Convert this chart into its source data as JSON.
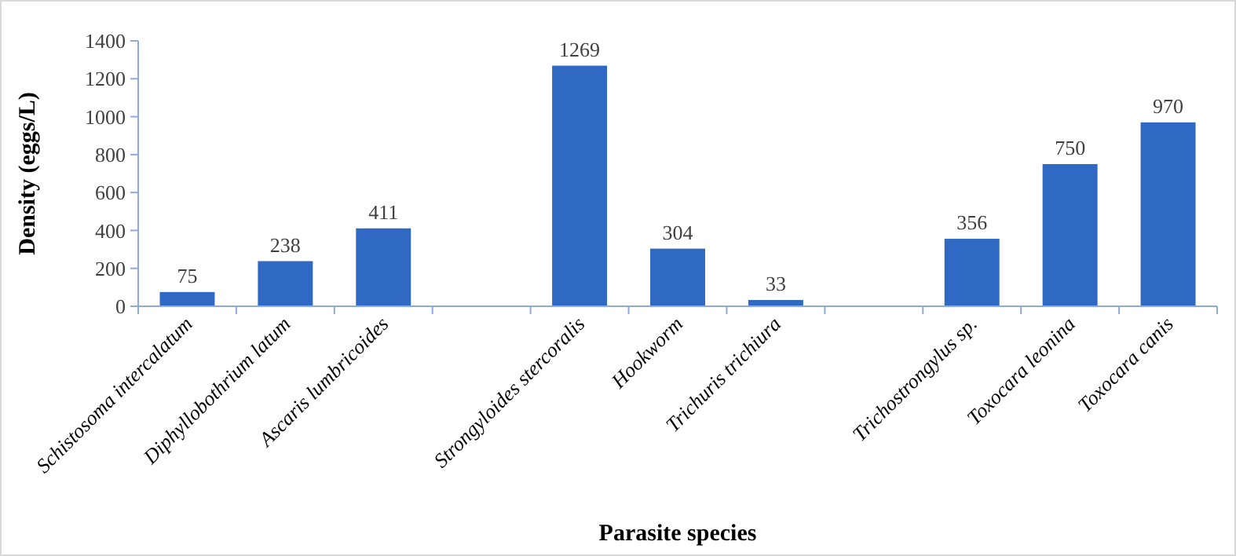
{
  "chart_data": {
    "type": "bar",
    "xlabel": "Parasite species",
    "ylabel": "Density (eggs/L)",
    "categories": [
      "Schistosoma intercalatum",
      "Diphyllobothrium latum",
      "Ascaris lumbricoides",
      null,
      "Strongyloides stercoralis",
      "Hookworm",
      "Trichuris trichiura",
      null,
      "Trichostrongylus sp.",
      "Toxocara leonina",
      "Toxocara canis"
    ],
    "values": [
      75,
      238,
      411,
      null,
      1269,
      304,
      33,
      null,
      356,
      750,
      970
    ],
    "color": "#2f69c4",
    "ylim": [
      0,
      1400
    ],
    "yticks": [
      0,
      200,
      400,
      600,
      800,
      1000,
      1200,
      1400
    ],
    "data_labels": true,
    "grid": false
  }
}
